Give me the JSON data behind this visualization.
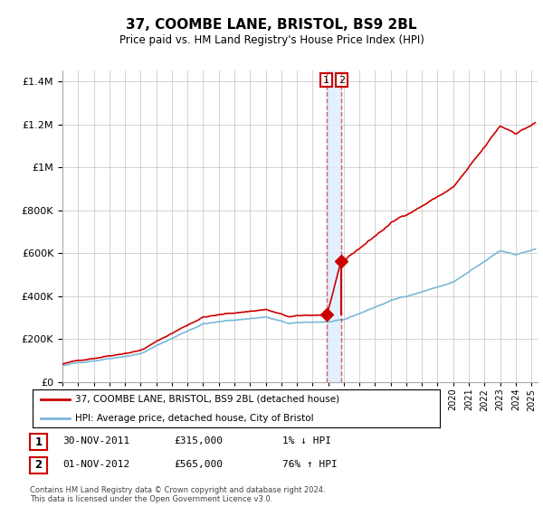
{
  "title": "37, COOMBE LANE, BRISTOL, BS9 2BL",
  "subtitle": "Price paid vs. HM Land Registry's House Price Index (HPI)",
  "legend_line1": "37, COOMBE LANE, BRISTOL, BS9 2BL (detached house)",
  "legend_line2": "HPI: Average price, detached house, City of Bristol",
  "transaction1_date": "30-NOV-2011",
  "transaction1_price": "£315,000",
  "transaction1_hpi": "1% ↓ HPI",
  "transaction2_date": "01-NOV-2012",
  "transaction2_price": "£565,000",
  "transaction2_hpi": "76% ↑ HPI",
  "footer": "Contains HM Land Registry data © Crown copyright and database right 2024.\nThis data is licensed under the Open Government Licence v3.0.",
  "hpi_color": "#7ab8d9",
  "price_color": "#cc0000",
  "vline_color": "#cc0000",
  "shade_color": "#ddeeff",
  "ylim_max": 1450000,
  "ylim_min": 0,
  "t1_year": 2011.917,
  "t2_year": 2012.833,
  "t1_price": 315000,
  "t2_price": 565000
}
